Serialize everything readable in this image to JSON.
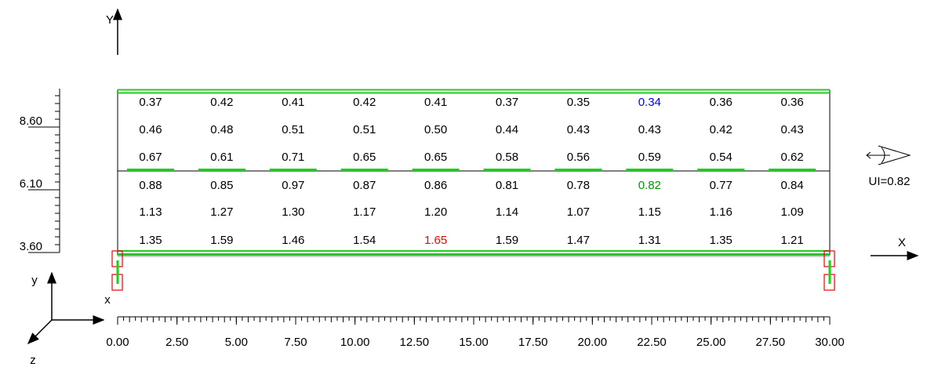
{
  "axis_labels": {
    "Y": "Y",
    "X": "X",
    "y": "y",
    "x": "x",
    "z": "z"
  },
  "utilization": "UI=0.82",
  "grid": {
    "rows": [
      [
        "0.37",
        "0.42",
        "0.41",
        "0.42",
        "0.41",
        "0.37",
        "0.35",
        {
          "text": "0.34",
          "color": "#0000ff"
        },
        "0.36",
        "0.36"
      ],
      [
        "0.46",
        "0.48",
        "0.51",
        "0.51",
        "0.50",
        "0.44",
        "0.43",
        "0.43",
        "0.42",
        "0.43"
      ],
      [
        "0.67",
        "0.61",
        "0.71",
        "0.65",
        "0.65",
        "0.58",
        "0.56",
        "0.59",
        "0.54",
        "0.62"
      ],
      [
        "0.88",
        "0.85",
        "0.97",
        "0.87",
        "0.86",
        "0.81",
        "0.78",
        {
          "text": "0.82",
          "color": "#009900"
        },
        "0.77",
        "0.84"
      ],
      [
        "1.13",
        "1.27",
        "1.30",
        "1.17",
        "1.20",
        "1.14",
        "1.07",
        "1.15",
        "1.16",
        "1.09"
      ],
      [
        "1.35",
        "1.59",
        "1.46",
        "1.54",
        {
          "text": "1.65",
          "color": "#ff0000"
        },
        "1.59",
        "1.47",
        "1.31",
        "1.35",
        "1.21"
      ]
    ]
  },
  "y_ruler": {
    "lim": [
      3.6,
      8.6
    ],
    "ticks": [
      {
        "value": 8.6,
        "label": "8.60"
      },
      {
        "value": 6.1,
        "label": "6.10"
      },
      {
        "value": 3.6,
        "label": "3.60"
      }
    ]
  },
  "x_ruler": {
    "lim": [
      0,
      30
    ],
    "ticks": [
      {
        "value": 0,
        "label": "0.00"
      },
      {
        "value": 2.5,
        "label": "2.50"
      },
      {
        "value": 5,
        "label": "5.00"
      },
      {
        "value": 7.5,
        "label": "7.50"
      },
      {
        "value": 10,
        "label": "10.00"
      },
      {
        "value": 12.5,
        "label": "12.50"
      },
      {
        "value": 15,
        "label": "15.00"
      },
      {
        "value": 17.5,
        "label": "17.50"
      },
      {
        "value": 20,
        "label": "20.00"
      },
      {
        "value": 22.5,
        "label": "22.50"
      },
      {
        "value": 25,
        "label": "25.00"
      },
      {
        "value": 27.5,
        "label": "27.50"
      },
      {
        "value": 30,
        "label": "30.00"
      }
    ]
  }
}
